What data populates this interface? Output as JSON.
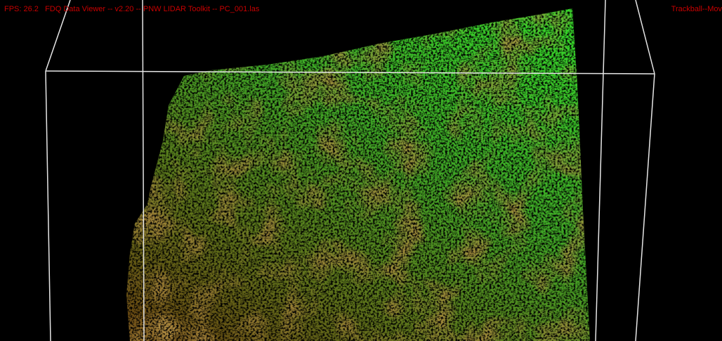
{
  "status_bar": {
    "left": "FPS: 26.2   FDQ Data Viewer -- v2.20 -- PNW LIDAR Toolkit -- PC_001.las",
    "right": "Trackball--Mov"
  }
}
